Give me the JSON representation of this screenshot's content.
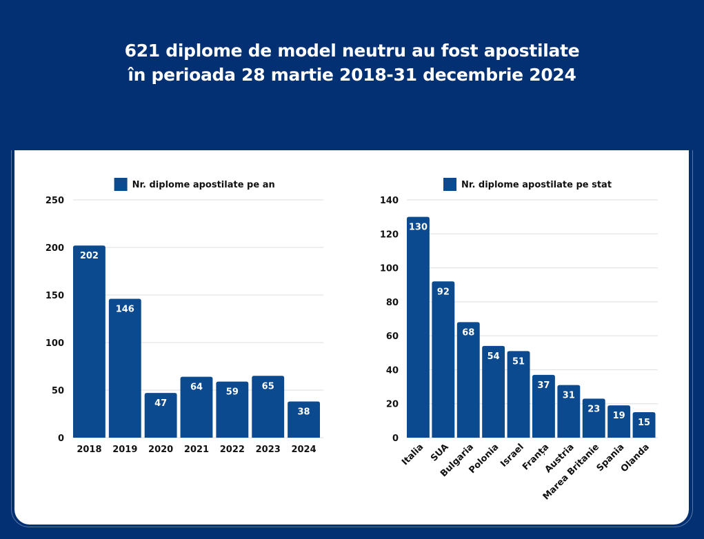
{
  "title": {
    "line1": "621 diplome de model neutru au fost apostilate",
    "line2": "în perioada 28 martie 2018-31 decembrie 2024"
  },
  "colors": {
    "background": "#033072",
    "bar": "#0c4a8f",
    "panel": "#ffffff",
    "grid": "#dddddd"
  },
  "chart_data": [
    {
      "type": "bar",
      "title": "",
      "legend": "Nr. diplome apostilate pe an",
      "legend_position": "top-center",
      "categories": [
        "2018",
        "2019",
        "2020",
        "2021",
        "2022",
        "2023",
        "2024"
      ],
      "values": [
        202,
        146,
        47,
        64,
        59,
        65,
        38
      ],
      "xlabel": "",
      "ylabel": "",
      "ylim": [
        0,
        250
      ],
      "yticks": [
        0,
        50,
        100,
        150,
        200,
        250
      ],
      "grid": true,
      "data_labels": true
    },
    {
      "type": "bar",
      "title": "",
      "legend": "Nr. diplome apostilate pe stat",
      "legend_position": "top-center",
      "categories": [
        "Italia",
        "SUA",
        "Bulgaria",
        "Polonia",
        "Israel",
        "Franța",
        "Austria",
        "Marea Britanie",
        "Spania",
        "Olanda"
      ],
      "values": [
        130,
        92,
        68,
        54,
        51,
        37,
        31,
        23,
        19,
        15
      ],
      "xlabel": "",
      "ylabel": "",
      "ylim": [
        0,
        140
      ],
      "yticks": [
        0,
        20,
        40,
        60,
        80,
        100,
        120,
        140
      ],
      "grid": true,
      "data_labels": true,
      "category_label_rotation": "diagonal"
    }
  ]
}
